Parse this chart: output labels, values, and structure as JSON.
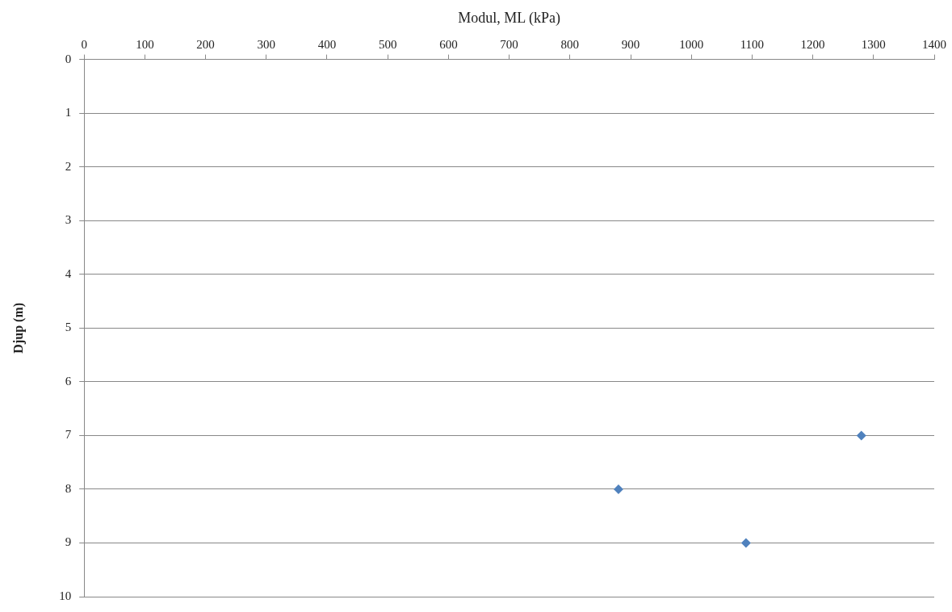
{
  "chart_data": {
    "type": "scatter",
    "xlabel": "Modul, ML (kPa)",
    "ylabel": "Djup (m)",
    "x": [
      1280,
      880,
      1090
    ],
    "series": [
      {
        "color": "#4f81bd",
        "values": [
          7,
          8,
          9
        ]
      }
    ],
    "xlim": [
      0,
      1400
    ],
    "xticks": [
      0,
      100,
      200,
      300,
      400,
      500,
      600,
      700,
      800,
      900,
      1000,
      1100,
      1200,
      1300,
      1400
    ],
    "ylim": [
      10,
      0
    ],
    "yticks": [
      0,
      1,
      2,
      3,
      4,
      5,
      6,
      7,
      8,
      9,
      10
    ],
    "grid": "y",
    "marker": "diamond",
    "legend": false
  }
}
